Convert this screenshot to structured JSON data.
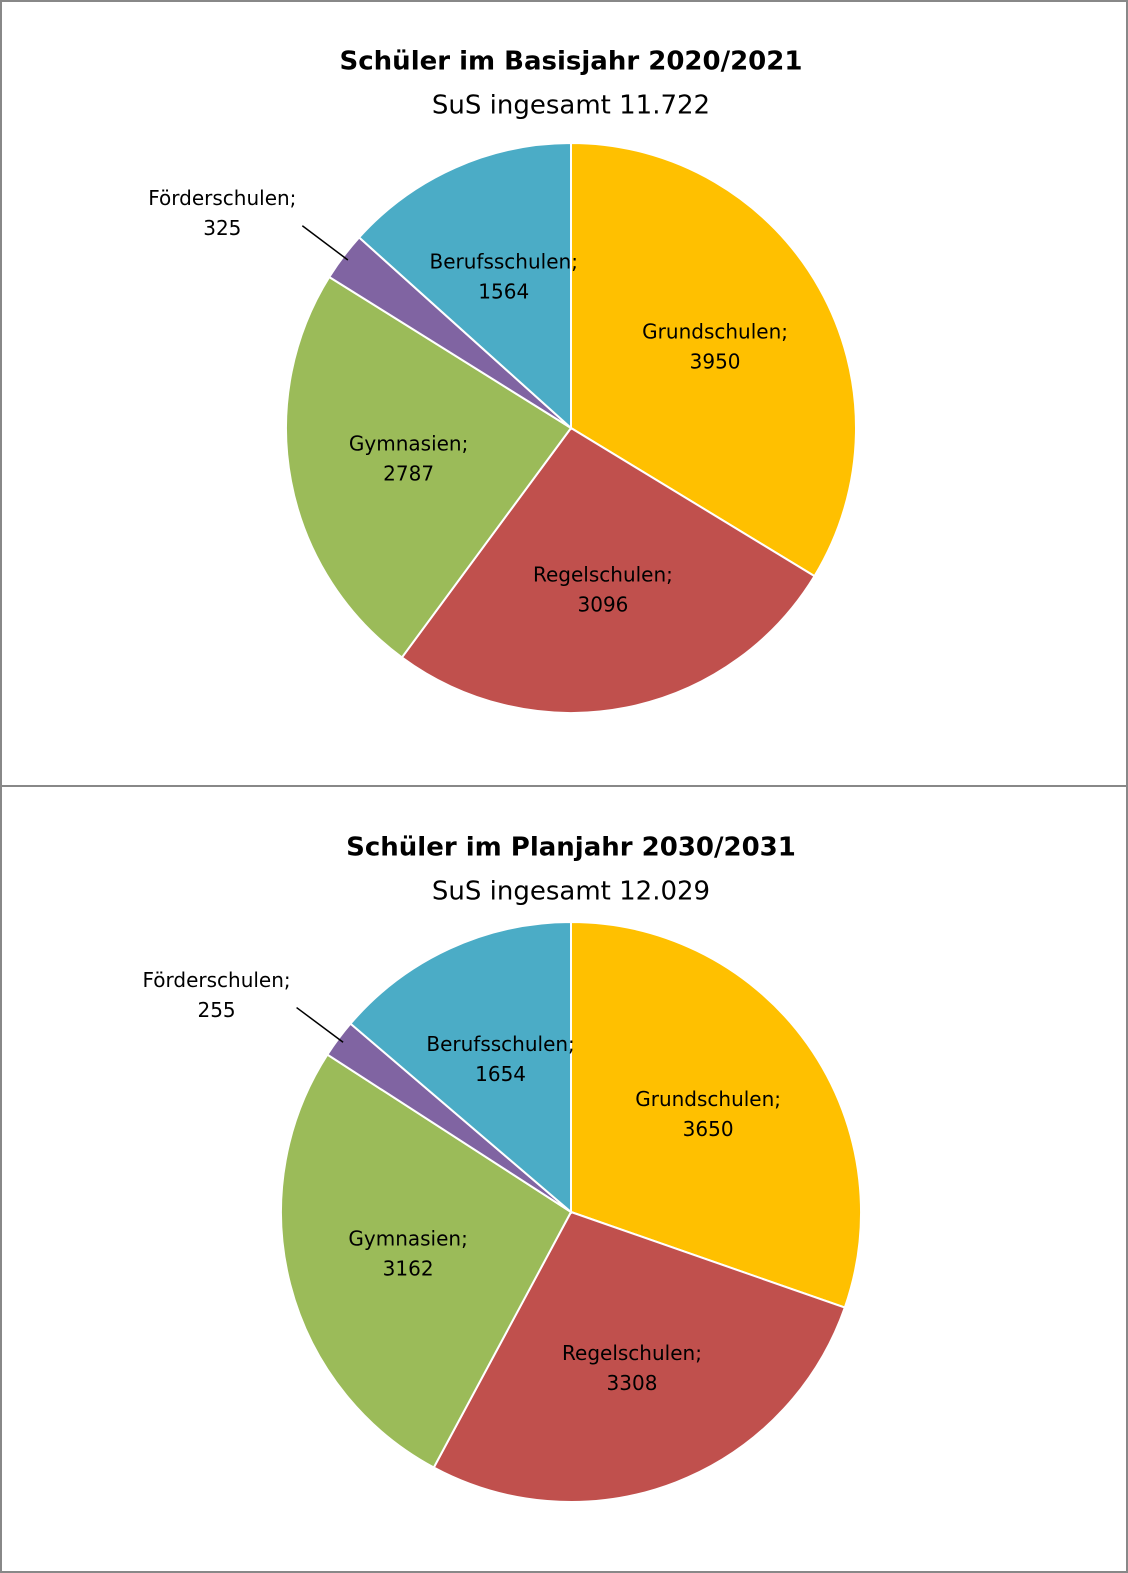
{
  "chart_data": [
    {
      "type": "pie",
      "title": "Schüler im Basisjahr 2020/2021",
      "subtitle": "SuS ingesamt 11.722",
      "categories": [
        "Grundschulen;",
        "Regelschulen;",
        "Gymnasien;",
        "Förderschulen;",
        "Berufsschulen;"
      ],
      "values": [
        3950,
        3096,
        2787,
        325,
        1564
      ],
      "colors": [
        "#ffc000",
        "#c0504d",
        "#9bbb59",
        "#8064a2",
        "#4bacc6"
      ]
    },
    {
      "type": "pie",
      "title": "Schüler im Planjahr 2030/2031",
      "subtitle": "SuS ingesamt  12.029",
      "categories": [
        "Grundschulen;",
        "Regelschulen;",
        "Gymnasien;",
        "Förderschulen;",
        "Berufsschulen;"
      ],
      "values": [
        3650,
        3308,
        3162,
        255,
        1654
      ],
      "colors": [
        "#ffc000",
        "#c0504d",
        "#9bbb59",
        "#8064a2",
        "#4bacc6"
      ]
    }
  ]
}
